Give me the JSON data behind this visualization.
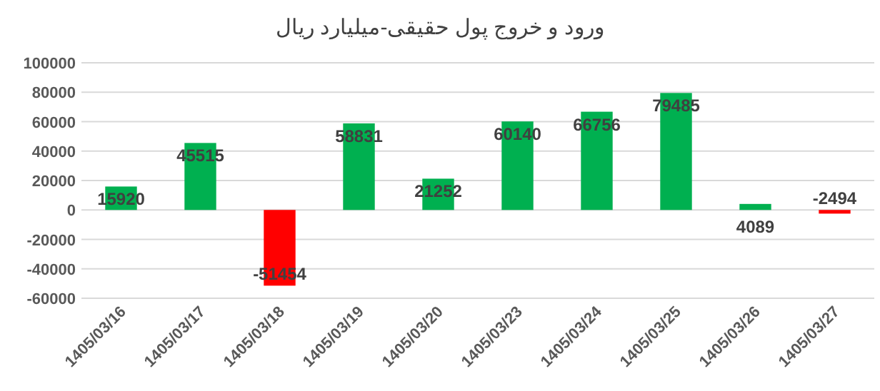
{
  "chart_data": {
    "type": "bar",
    "title": "ورود و خروج پول حقیقی-میلیارد ریال",
    "categories": [
      "1405/03/16",
      "1405/03/17",
      "1405/03/18",
      "1405/03/19",
      "1405/03/20",
      "1405/03/23",
      "1405/03/24",
      "1405/03/25",
      "1405/03/26",
      "1405/03/27"
    ],
    "values": [
      15920,
      45515,
      -51454,
      58831,
      21252,
      60140,
      66756,
      79485,
      4089,
      -2494
    ],
    "colors": [
      "#00b050",
      "#00b050",
      "#ff0000",
      "#00b050",
      "#00b050",
      "#00b050",
      "#00b050",
      "#00b050",
      "#00b050",
      "#ff0000"
    ],
    "ylim": [
      -60000,
      100000
    ],
    "yticks": [
      -60000,
      -40000,
      -20000,
      0,
      20000,
      40000,
      60000,
      80000,
      100000
    ],
    "grid": "y",
    "data_labels": true
  }
}
